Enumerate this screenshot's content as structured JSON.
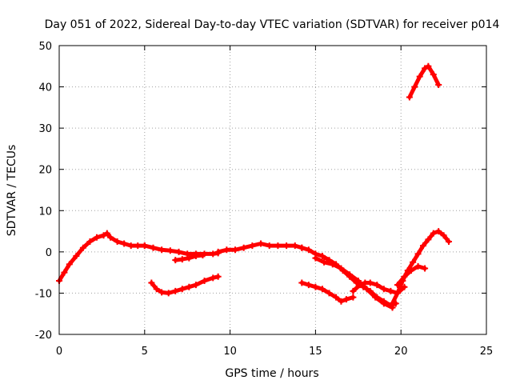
{
  "chart_data": {
    "type": "scatter",
    "title": "Day 051 of 2022, Sidereal Day-to-day VTEC variation (SDTVAR) for receiver p014",
    "xlabel": "GPS time / hours",
    "ylabel": "SDTVAR / TECUs",
    "xlim": [
      0,
      25
    ],
    "ylim": [
      -20,
      50
    ],
    "xticks": [
      0,
      5,
      10,
      15,
      20,
      25
    ],
    "yticks": [
      -20,
      -10,
      0,
      10,
      20,
      30,
      40,
      50
    ],
    "grid": true,
    "legend": "none",
    "marker_color": "#ff0000",
    "series": [
      {
        "name": "arc-1",
        "x": [
          0.0,
          0.3,
          0.6,
          1.0,
          1.4,
          1.8,
          2.2,
          2.6,
          2.8,
          3.0,
          3.4,
          3.8,
          4.2,
          4.6,
          5.0
        ],
        "y": [
          -7,
          -5,
          -3,
          -1,
          1,
          2.5,
          3.5,
          4,
          4.5,
          3.5,
          2.5,
          2,
          1.5,
          1.5,
          1.5
        ]
      },
      {
        "name": "arc-2",
        "x": [
          5.0,
          5.5,
          6.0,
          6.5,
          7.0,
          7.5,
          8.0,
          8.5,
          9.0,
          9.3
        ],
        "y": [
          1.5,
          1,
          0.5,
          0.3,
          0,
          -0.5,
          -0.5,
          -0.5,
          -0.5,
          -0.3
        ]
      },
      {
        "name": "arc-3",
        "x": [
          6.8,
          7.2,
          7.6,
          8.0,
          8.4
        ],
        "y": [
          -2,
          -1.8,
          -1.5,
          -1,
          -0.8
        ]
      },
      {
        "name": "arc-4",
        "x": [
          5.4,
          5.7,
          6.0,
          6.4,
          6.8,
          7.2,
          7.6,
          8.0,
          8.5,
          9.0,
          9.3
        ],
        "y": [
          -7.5,
          -9,
          -9.8,
          -10,
          -9.5,
          -9,
          -8.5,
          -8,
          -7,
          -6.3,
          -6
        ]
      },
      {
        "name": "arc-5",
        "x": [
          9.3,
          9.8,
          10.3,
          10.8,
          11.3,
          11.8,
          12.3,
          12.8,
          13.3,
          13.8,
          14.2
        ],
        "y": [
          0,
          0.5,
          0.5,
          1,
          1.5,
          2,
          1.5,
          1.5,
          1.5,
          1.5,
          1
        ]
      },
      {
        "name": "arc-6",
        "x": [
          14.2,
          14.6,
          15.0,
          15.4,
          15.8,
          16.2,
          16.6,
          17.0,
          17.4,
          17.8,
          18.2,
          18.6,
          19.0,
          19.4,
          19.7
        ],
        "y": [
          1,
          0.5,
          -0.5,
          -1,
          -2,
          -3,
          -4.5,
          -6,
          -7.5,
          -8.5,
          -9.5,
          -11,
          -12,
          -13,
          -12.5
        ]
      },
      {
        "name": "arc-7",
        "x": [
          14.2,
          14.6,
          15.0,
          15.4,
          15.8,
          16.2,
          16.5,
          16.8,
          17.2
        ],
        "y": [
          -7.5,
          -8,
          -8.5,
          -9,
          -10,
          -11,
          -12,
          -11.5,
          -11
        ]
      },
      {
        "name": "arc-8",
        "x": [
          17.2,
          17.6,
          17.9,
          18.2,
          18.6,
          19.0,
          19.4,
          19.8,
          20.2
        ],
        "y": [
          -9.5,
          -8,
          -7.5,
          -7.5,
          -8,
          -9,
          -9.5,
          -10,
          -8.5
        ]
      },
      {
        "name": "arc-9",
        "x": [
          15.0,
          15.5,
          16.0,
          16.5,
          17.0,
          17.5,
          18.0,
          18.5,
          19.0,
          19.5
        ],
        "y": [
          -1.5,
          -2.5,
          -3,
          -4,
          -5.5,
          -7,
          -9,
          -11,
          -12.5,
          -13.5
        ]
      },
      {
        "name": "arc-10",
        "x": [
          19.5,
          19.8,
          20.1,
          20.4,
          20.7,
          21.0,
          21.3,
          21.6,
          21.9,
          22.2,
          22.5,
          22.8
        ],
        "y": [
          -12.5,
          -10,
          -7,
          -4.5,
          -2.5,
          -0.5,
          1.5,
          3,
          4.5,
          5,
          4,
          2.5
        ]
      },
      {
        "name": "arc-11",
        "x": [
          19.8,
          20.2,
          20.6,
          21.0,
          21.4
        ],
        "y": [
          -8,
          -6,
          -4.5,
          -3.5,
          -4
        ]
      },
      {
        "name": "arc-12",
        "x": [
          20.5,
          20.8,
          21.1,
          21.4,
          21.6,
          21.9,
          22.2
        ],
        "y": [
          37.5,
          40,
          42.5,
          44.5,
          45,
          43,
          40.5
        ]
      }
    ]
  }
}
